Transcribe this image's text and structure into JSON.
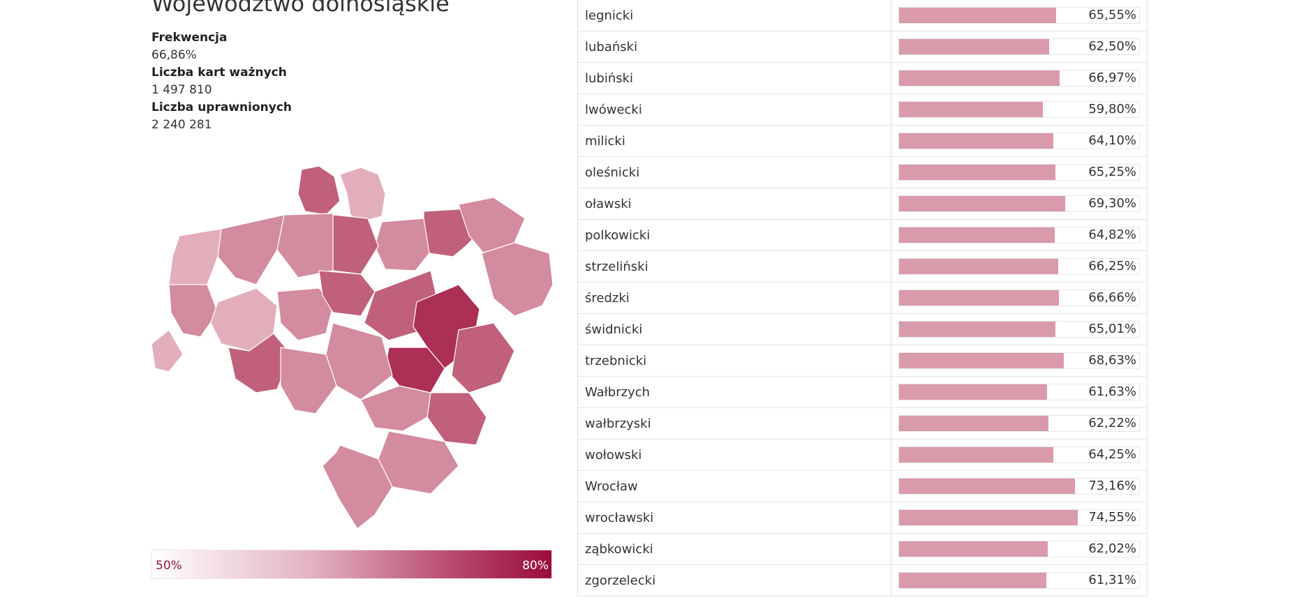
{
  "region": {
    "title": "Województwo dolnośląskie",
    "stats": [
      {
        "label": "Frekwencja",
        "value": "66,86%"
      },
      {
        "label": "Liczba kart ważnych",
        "value": "1 497 810"
      },
      {
        "label": "Liczba uprawnionych",
        "value": "2 240 281"
      }
    ]
  },
  "legend": {
    "min_label": "50%",
    "max_label": "80%",
    "min_color": "#ffffff",
    "max_color": "#9a0d3d"
  },
  "colors": {
    "bar_fill": "#d99aab",
    "map_light": "#e3aebb",
    "map_mid": "#d38b9f",
    "map_dark": "#c0607b",
    "map_darkest": "#ac2f55"
  },
  "table": {
    "rows": [
      {
        "name": "legnicki",
        "value_label": "65,55%",
        "fraction": 0.6555
      },
      {
        "name": "lubański",
        "value_label": "62,50%",
        "fraction": 0.625
      },
      {
        "name": "lubiński",
        "value_label": "66,97%",
        "fraction": 0.6697
      },
      {
        "name": "lwówecki",
        "value_label": "59,80%",
        "fraction": 0.598
      },
      {
        "name": "milicki",
        "value_label": "64,10%",
        "fraction": 0.641
      },
      {
        "name": "oleśnicki",
        "value_label": "65,25%",
        "fraction": 0.6525
      },
      {
        "name": "oławski",
        "value_label": "69,30%",
        "fraction": 0.693
      },
      {
        "name": "polkowicki",
        "value_label": "64,82%",
        "fraction": 0.6482
      },
      {
        "name": "strzeliński",
        "value_label": "66,25%",
        "fraction": 0.6625
      },
      {
        "name": "średzki",
        "value_label": "66,66%",
        "fraction": 0.6666
      },
      {
        "name": "świdnicki",
        "value_label": "65,01%",
        "fraction": 0.6501
      },
      {
        "name": "trzebnicki",
        "value_label": "68,63%",
        "fraction": 0.6863
      },
      {
        "name": "Wałbrzych",
        "value_label": "61,63%",
        "fraction": 0.6163
      },
      {
        "name": "wałbrzyski",
        "value_label": "62,22%",
        "fraction": 0.6222
      },
      {
        "name": "wołowski",
        "value_label": "64,25%",
        "fraction": 0.6425
      },
      {
        "name": "Wrocław",
        "value_label": "73,16%",
        "fraction": 0.7316
      },
      {
        "name": "wrocławski",
        "value_label": "74,55%",
        "fraction": 0.7455
      },
      {
        "name": "ząbkowicki",
        "value_label": "62,02%",
        "fraction": 0.6202
      },
      {
        "name": "zgorzelecki",
        "value_label": "61,31%",
        "fraction": 0.6131
      }
    ]
  }
}
